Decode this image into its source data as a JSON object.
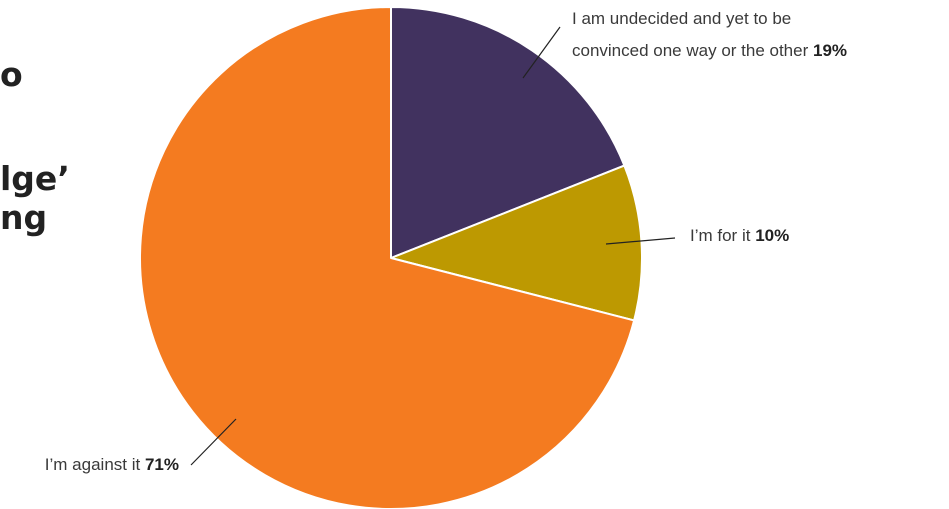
{
  "heading_fragments": [
    "o",
    "lge’",
    "ng"
  ],
  "chart_data": {
    "type": "pie",
    "start_angle_deg": 0,
    "direction": "clockwise",
    "slices": [
      {
        "label_lines": [
          "I am undecided and yet to be",
          "convinced one way or the other"
        ],
        "value": 19,
        "value_label": "19%",
        "color": "#41325f"
      },
      {
        "label_lines": [
          "I’m for it"
        ],
        "value": 10,
        "value_label": "10%",
        "color": "#bd9901"
      },
      {
        "label_lines": [
          "I’m against it"
        ],
        "value": 71,
        "value_label": "71%",
        "color": "#f47b20"
      }
    ]
  }
}
